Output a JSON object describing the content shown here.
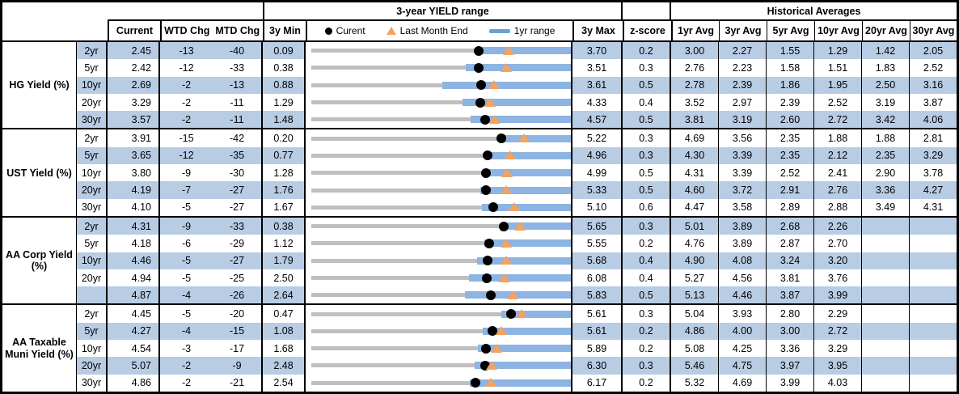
{
  "colors": {
    "band": "#B8CCE4",
    "bar": "#8DB4E2",
    "track": "#BFBFBF",
    "triangle": "#F6A15C",
    "dot": "#000000",
    "legend_bar": "#6D9FD6"
  },
  "chart_data": {
    "type": "table",
    "title": "3-year YIELD range",
    "hist_title": "Historical Averages",
    "columns": [
      "Current",
      "WTD Chg",
      "MTD Chg",
      "3y Min",
      "3y Max",
      "z-score",
      "1yr Avg",
      "3yr Avg",
      "5yr Avg",
      "10yr Avg",
      "20yr Avg",
      "30yr Avg"
    ],
    "legend": {
      "current": "Curent",
      "last_month": "Last Month End",
      "range": "1yr range"
    },
    "axis_note": "each range bar spans 3y Min to 3y Max; blue bar is 1yr range; dot=current, triangle=last month end",
    "groups": [
      {
        "label": "HG Yield (%)",
        "rows": [
          {
            "tenor": "2yr",
            "current": "2.45",
            "wtd": "-13",
            "mtd": "-40",
            "min_3y": "0.09",
            "max_3y": "3.70",
            "z": "0.2",
            "avgs": [
              "3.00",
              "2.27",
              "1.55",
              "1.29",
              "1.42",
              "2.05"
            ],
            "last_month_end": 2.85,
            "low_1yr": 2.41,
            "high_1yr": 3.7
          },
          {
            "tenor": "5yr",
            "current": "2.42",
            "wtd": "-12",
            "mtd": "-33",
            "min_3y": "0.38",
            "max_3y": "3.51",
            "z": "0.3",
            "avgs": [
              "2.76",
              "2.23",
              "1.58",
              "1.51",
              "1.83",
              "2.52"
            ],
            "last_month_end": 2.75,
            "low_1yr": 2.27,
            "high_1yr": 3.51
          },
          {
            "tenor": "10yr",
            "current": "2.69",
            "wtd": "-2",
            "mtd": "-13",
            "min_3y": "0.88",
            "max_3y": "3.61",
            "z": "0.5",
            "avgs": [
              "2.78",
              "2.39",
              "1.86",
              "1.95",
              "2.50",
              "3.16"
            ],
            "last_month_end": 2.82,
            "low_1yr": 2.29,
            "high_1yr": 3.61
          },
          {
            "tenor": "20yr",
            "current": "3.29",
            "wtd": "-2",
            "mtd": "-11",
            "min_3y": "1.29",
            "max_3y": "4.33",
            "z": "0.4",
            "avgs": [
              "3.52",
              "2.97",
              "2.39",
              "2.52",
              "3.19",
              "3.87"
            ],
            "last_month_end": 3.4,
            "low_1yr": 3.09,
            "high_1yr": 4.33
          },
          {
            "tenor": "30yr",
            "current": "3.57",
            "wtd": "-2",
            "mtd": "-11",
            "min_3y": "1.48",
            "max_3y": "4.57",
            "z": "0.5",
            "avgs": [
              "3.81",
              "3.19",
              "2.60",
              "2.72",
              "3.42",
              "4.06"
            ],
            "last_month_end": 3.68,
            "low_1yr": 3.4,
            "high_1yr": 4.57
          }
        ]
      },
      {
        "label": "UST Yield (%)",
        "rows": [
          {
            "tenor": "2yr",
            "current": "3.91",
            "wtd": "-15",
            "mtd": "-42",
            "min_3y": "0.20",
            "max_3y": "5.22",
            "z": "0.3",
            "avgs": [
              "4.69",
              "3.56",
              "2.35",
              "1.88",
              "1.88",
              "2.81"
            ],
            "last_month_end": 4.33,
            "low_1yr": 3.88,
            "high_1yr": 5.22
          },
          {
            "tenor": "5yr",
            "current": "3.65",
            "wtd": "-12",
            "mtd": "-35",
            "min_3y": "0.77",
            "max_3y": "4.96",
            "z": "0.3",
            "avgs": [
              "4.30",
              "3.39",
              "2.35",
              "2.12",
              "2.35",
              "3.29"
            ],
            "last_month_end": 4.0,
            "low_1yr": 3.62,
            "high_1yr": 4.96
          },
          {
            "tenor": "10yr",
            "current": "3.80",
            "wtd": "-9",
            "mtd": "-30",
            "min_3y": "1.28",
            "max_3y": "4.99",
            "z": "0.5",
            "avgs": [
              "4.31",
              "3.39",
              "2.52",
              "2.41",
              "2.90",
              "3.78"
            ],
            "last_month_end": 4.1,
            "low_1yr": 3.78,
            "high_1yr": 4.99
          },
          {
            "tenor": "20yr",
            "current": "4.19",
            "wtd": "-7",
            "mtd": "-27",
            "min_3y": "1.76",
            "max_3y": "5.33",
            "z": "0.5",
            "avgs": [
              "4.60",
              "3.72",
              "2.91",
              "2.76",
              "3.36",
              "4.27"
            ],
            "last_month_end": 4.46,
            "low_1yr": 4.11,
            "high_1yr": 5.33
          },
          {
            "tenor": "30yr",
            "current": "4.10",
            "wtd": "-5",
            "mtd": "-27",
            "min_3y": "1.67",
            "max_3y": "5.10",
            "z": "0.6",
            "avgs": [
              "4.47",
              "3.58",
              "2.89",
              "2.88",
              "3.49",
              "4.31"
            ],
            "last_month_end": 4.37,
            "low_1yr": 3.95,
            "high_1yr": 5.1
          }
        ]
      },
      {
        "label": "AA Corp Yield (%)",
        "rows": [
          {
            "tenor": "2yr",
            "current": "4.31",
            "wtd": "-9",
            "mtd": "-33",
            "min_3y": "0.38",
            "max_3y": "5.65",
            "z": "0.3",
            "avgs": [
              "5.01",
              "3.89",
              "2.68",
              "2.26",
              "",
              ""
            ],
            "last_month_end": 4.64,
            "low_1yr": 4.27,
            "high_1yr": 5.65
          },
          {
            "tenor": "5yr",
            "current": "4.18",
            "wtd": "-6",
            "mtd": "-29",
            "min_3y": "1.12",
            "max_3y": "5.55",
            "z": "0.2",
            "avgs": [
              "4.76",
              "3.89",
              "2.87",
              "2.70",
              "",
              ""
            ],
            "last_month_end": 4.47,
            "low_1yr": 4.1,
            "high_1yr": 5.55
          },
          {
            "tenor": "10yr",
            "current": "4.46",
            "wtd": "-5",
            "mtd": "-27",
            "min_3y": "1.79",
            "max_3y": "5.68",
            "z": "0.4",
            "avgs": [
              "4.90",
              "4.08",
              "3.24",
              "3.20",
              "",
              ""
            ],
            "last_month_end": 4.73,
            "low_1yr": 4.31,
            "high_1yr": 5.68
          },
          {
            "tenor": "20yr",
            "current": "4.94",
            "wtd": "-5",
            "mtd": "-25",
            "min_3y": "2.50",
            "max_3y": "6.08",
            "z": "0.4",
            "avgs": [
              "5.27",
              "4.56",
              "3.81",
              "3.76",
              "",
              ""
            ],
            "last_month_end": 5.19,
            "low_1yr": 4.71,
            "high_1yr": 6.08
          },
          {
            "tenor": "",
            "current": "4.87",
            "wtd": "-4",
            "mtd": "-26",
            "min_3y": "2.64",
            "max_3y": "5.83",
            "z": "0.5",
            "avgs": [
              "5.13",
              "4.46",
              "3.87",
              "3.99",
              "",
              ""
            ],
            "last_month_end": 5.13,
            "low_1yr": 4.56,
            "high_1yr": 5.83
          }
        ]
      },
      {
        "label": "AA Taxable Muni Yield (%)",
        "rows": [
          {
            "tenor": "2yr",
            "current": "4.45",
            "wtd": "-5",
            "mtd": "-20",
            "min_3y": "0.47",
            "max_3y": "5.61",
            "z": "0.3",
            "avgs": [
              "5.04",
              "3.93",
              "2.80",
              "2.29",
              "",
              ""
            ],
            "last_month_end": 4.65,
            "low_1yr": 4.27,
            "high_1yr": 5.61
          },
          {
            "tenor": "5yr",
            "current": "4.27",
            "wtd": "-4",
            "mtd": "-15",
            "min_3y": "1.08",
            "max_3y": "5.61",
            "z": "0.2",
            "avgs": [
              "4.86",
              "4.00",
              "3.00",
              "2.72",
              "",
              ""
            ],
            "last_month_end": 4.42,
            "low_1yr": 4.1,
            "high_1yr": 5.61
          },
          {
            "tenor": "10yr",
            "current": "4.54",
            "wtd": "-3",
            "mtd": "-17",
            "min_3y": "1.68",
            "max_3y": "5.89",
            "z": "0.2",
            "avgs": [
              "5.08",
              "4.25",
              "3.36",
              "3.29",
              "",
              ""
            ],
            "last_month_end": 4.71,
            "low_1yr": 4.42,
            "high_1yr": 5.89
          },
          {
            "tenor": "20yr",
            "current": "5.07",
            "wtd": "-2",
            "mtd": "-9",
            "min_3y": "2.48",
            "max_3y": "6.30",
            "z": "0.3",
            "avgs": [
              "5.46",
              "4.75",
              "3.97",
              "3.95",
              "",
              ""
            ],
            "last_month_end": 5.16,
            "low_1yr": 4.91,
            "high_1yr": 6.3
          },
          {
            "tenor": "30yr",
            "current": "4.86",
            "wtd": "-2",
            "mtd": "-21",
            "min_3y": "2.54",
            "max_3y": "6.17",
            "z": "0.2",
            "avgs": [
              "5.32",
              "4.69",
              "3.99",
              "4.03",
              "",
              ""
            ],
            "last_month_end": 5.07,
            "low_1yr": 4.79,
            "high_1yr": 6.17
          }
        ]
      }
    ]
  }
}
